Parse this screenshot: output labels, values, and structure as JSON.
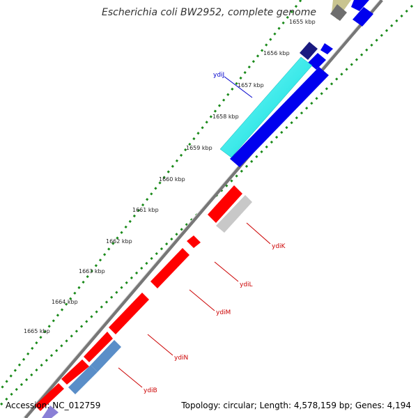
{
  "title": "Escherichia coli BW2952, complete genome",
  "accession": "Accession: NC_012759",
  "topology": "Topology: circular; Length: 4,578,159 bp; Genes: 4,194",
  "ticks": [
    {
      "label": "1655 kbp"
    },
    {
      "label": "1656 kbp"
    },
    {
      "label": "1657 kbp"
    },
    {
      "label": "1658 kbp"
    },
    {
      "label": "1659 kbp"
    },
    {
      "label": "1660 kbp"
    },
    {
      "label": "1661 kbp"
    },
    {
      "label": "1662 kbp"
    },
    {
      "label": "1663 kbp"
    },
    {
      "label": "1664 kbp"
    },
    {
      "label": "1665 kbp"
    }
  ],
  "gene_labels": [
    {
      "name": "ydiJ",
      "color": "#0000cc"
    },
    {
      "name": "ydiK",
      "color": "#cc0000"
    },
    {
      "name": "ydiL",
      "color": "#cc0000"
    },
    {
      "name": "ydiM",
      "color": "#cc0000"
    },
    {
      "name": "ydiN",
      "color": "#cc0000"
    },
    {
      "name": "ydiB",
      "color": "#cc0000"
    }
  ],
  "colors": {
    "forward_strand": "#0000ee",
    "reverse_strand": "#ff0000",
    "ydiJ_feature": "#00e8e8",
    "pseudogene": "#c8c8c8",
    "tick_dots": "#1a8a1a",
    "backbone": "#777777"
  }
}
